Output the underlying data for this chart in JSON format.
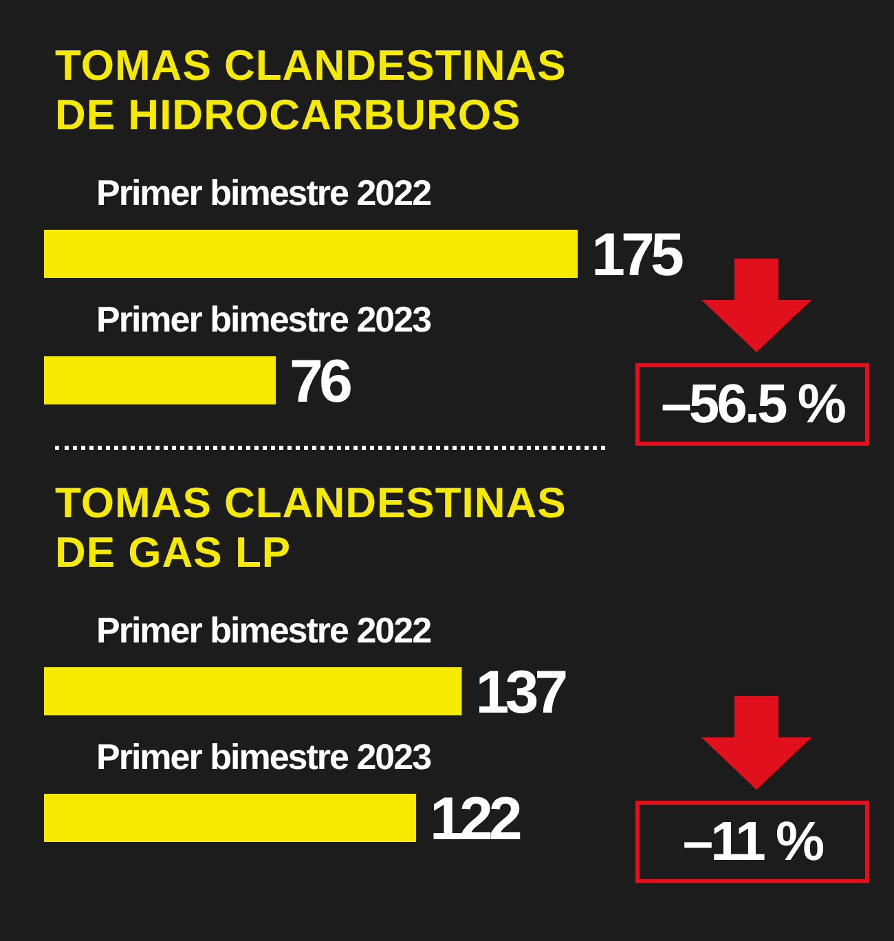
{
  "chart_data": [
    {
      "type": "bar",
      "orientation": "horizontal",
      "title": "TOMAS CLANDESTINAS\nDE HIDROCARBUROS",
      "categories": [
        "Primer bimestre 2022",
        "Primer bimestre 2023"
      ],
      "values": [
        175,
        76
      ],
      "color": "#f5ea00",
      "data_labels": true,
      "tick_labels": "y",
      "annotations": [
        "–56.5 %"
      ]
    },
    {
      "type": "bar",
      "orientation": "horizontal",
      "title": "TOMAS CLANDESTINAS\nDE GAS LP",
      "categories": [
        "Primer bimestre 2022",
        "Primer bimestre 2023"
      ],
      "values": [
        137,
        122
      ],
      "color": "#f5ea00",
      "data_labels": true,
      "tick_labels": "y",
      "annotations": [
        "–11 %"
      ]
    }
  ]
}
